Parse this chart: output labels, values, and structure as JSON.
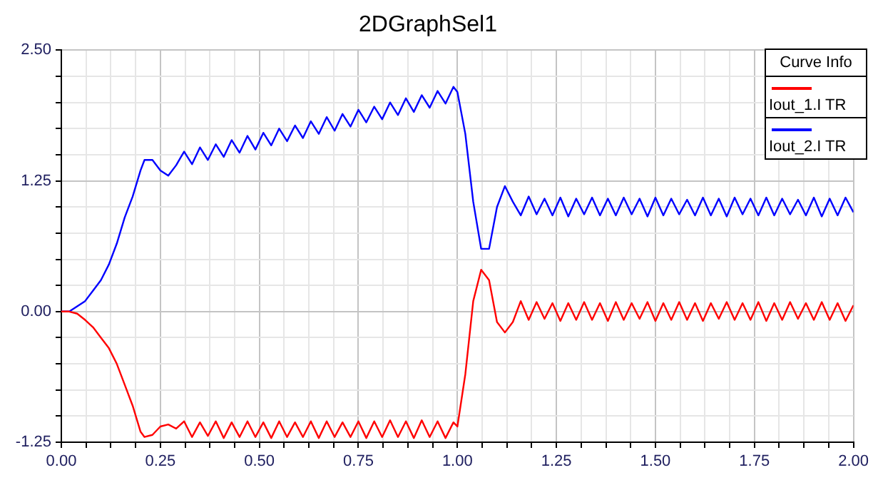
{
  "chart_data": {
    "type": "line",
    "title": "2DGraphSel1",
    "legend_title": "Curve Info",
    "legend": "top right",
    "grid": true,
    "marker": "none",
    "line_style": "solid",
    "xlim": [
      0,
      2
    ],
    "ylim": [
      -1.25,
      2.5
    ],
    "xticks": [
      {
        "value": 0,
        "label": "0.00"
      },
      {
        "value": 0.0625,
        "label": null
      },
      {
        "value": 0.125,
        "label": null
      },
      {
        "value": 0.1875,
        "label": null
      },
      {
        "value": 0.25,
        "label": "0.25"
      },
      {
        "value": 0.3125,
        "label": null
      },
      {
        "value": 0.375,
        "label": null
      },
      {
        "value": 0.4375,
        "label": null
      },
      {
        "value": 0.5,
        "label": "0.50"
      },
      {
        "value": 0.5625,
        "label": null
      },
      {
        "value": 0.625,
        "label": null
      },
      {
        "value": 0.6875,
        "label": null
      },
      {
        "value": 0.75,
        "label": "0.75"
      },
      {
        "value": 0.8125,
        "label": null
      },
      {
        "value": 0.875,
        "label": null
      },
      {
        "value": 0.9375,
        "label": null
      },
      {
        "value": 1,
        "label": "1.00"
      },
      {
        "value": 1.0625,
        "label": null
      },
      {
        "value": 1.125,
        "label": null
      },
      {
        "value": 1.1875,
        "label": null
      },
      {
        "value": 1.25,
        "label": "1.25"
      },
      {
        "value": 1.3125,
        "label": null
      },
      {
        "value": 1.375,
        "label": null
      },
      {
        "value": 1.4375,
        "label": null
      },
      {
        "value": 1.5,
        "label": "1.50"
      },
      {
        "value": 1.5625,
        "label": null
      },
      {
        "value": 1.625,
        "label": null
      },
      {
        "value": 1.6875,
        "label": null
      },
      {
        "value": 1.75,
        "label": "1.75"
      },
      {
        "value": 1.8125,
        "label": null
      },
      {
        "value": 1.875,
        "label": null
      },
      {
        "value": 1.9375,
        "label": null
      },
      {
        "value": 2,
        "label": "2.00"
      }
    ],
    "yticks": [
      {
        "value": -1.25,
        "label": "-1.25"
      },
      {
        "value": -1,
        "label": null
      },
      {
        "value": -0.75,
        "label": null
      },
      {
        "value": -0.5,
        "label": null
      },
      {
        "value": -0.25,
        "label": null
      },
      {
        "value": 0,
        "label": "0.00"
      },
      {
        "value": 0.25,
        "label": null
      },
      {
        "value": 0.5,
        "label": null
      },
      {
        "value": 0.75,
        "label": null
      },
      {
        "value": 1,
        "label": null
      },
      {
        "value": 1.25,
        "label": "1.25"
      },
      {
        "value": 1.5,
        "label": null
      },
      {
        "value": 1.75,
        "label": null
      },
      {
        "value": 2,
        "label": null
      },
      {
        "value": 2.25,
        "label": null
      },
      {
        "value": 2.5,
        "label": "2.50"
      }
    ],
    "x": [
      0,
      0.02,
      0.04,
      0.06,
      0.08,
      0.1,
      0.12,
      0.14,
      0.16,
      0.18,
      0.2,
      0.21,
      0.23,
      0.25,
      0.27,
      0.29,
      0.31,
      0.33,
      0.35,
      0.37,
      0.39,
      0.41,
      0.43,
      0.45,
      0.47,
      0.49,
      0.51,
      0.53,
      0.55,
      0.57,
      0.59,
      0.61,
      0.63,
      0.65,
      0.67,
      0.69,
      0.71,
      0.73,
      0.75,
      0.77,
      0.79,
      0.81,
      0.83,
      0.85,
      0.87,
      0.89,
      0.91,
      0.93,
      0.95,
      0.97,
      0.99,
      1.0,
      1.02,
      1.04,
      1.06,
      1.08,
      1.1,
      1.12,
      1.14,
      1.16,
      1.18,
      1.2,
      1.22,
      1.24,
      1.26,
      1.28,
      1.3,
      1.32,
      1.34,
      1.36,
      1.38,
      1.4,
      1.42,
      1.44,
      1.46,
      1.48,
      1.5,
      1.52,
      1.54,
      1.56,
      1.58,
      1.6,
      1.62,
      1.64,
      1.66,
      1.68,
      1.7,
      1.72,
      1.74,
      1.76,
      1.78,
      1.8,
      1.82,
      1.84,
      1.86,
      1.88,
      1.9,
      1.92,
      1.94,
      1.96,
      1.98,
      2.0
    ],
    "series": [
      {
        "name": "Iout_1.I TR",
        "color": "#ff0000",
        "values": [
          0,
          0,
          -0.02,
          -0.08,
          -0.15,
          -0.25,
          -0.35,
          -0.5,
          -0.7,
          -0.9,
          -1.15,
          -1.2,
          -1.18,
          -1.1,
          -1.08,
          -1.12,
          -1.05,
          -1.2,
          -1.06,
          -1.19,
          -1.05,
          -1.21,
          -1.06,
          -1.2,
          -1.05,
          -1.2,
          -1.06,
          -1.21,
          -1.05,
          -1.2,
          -1.06,
          -1.2,
          -1.05,
          -1.21,
          -1.05,
          -1.2,
          -1.06,
          -1.2,
          -1.05,
          -1.21,
          -1.05,
          -1.2,
          -1.04,
          -1.2,
          -1.05,
          -1.21,
          -1.04,
          -1.2,
          -1.05,
          -1.21,
          -1.06,
          -1.1,
          -0.6,
          0.1,
          0.4,
          0.3,
          -0.1,
          -0.2,
          -0.1,
          0.1,
          -0.08,
          0.09,
          -0.07,
          0.08,
          -0.09,
          0.08,
          -0.08,
          0.09,
          -0.08,
          0.08,
          -0.09,
          0.09,
          -0.08,
          0.08,
          -0.07,
          0.09,
          -0.09,
          0.08,
          -0.08,
          0.09,
          -0.08,
          0.08,
          -0.09,
          0.08,
          -0.07,
          0.09,
          -0.08,
          0.08,
          -0.08,
          0.09,
          -0.09,
          0.08,
          -0.08,
          0.09,
          -0.07,
          0.08,
          -0.08,
          0.09,
          -0.08,
          0.08,
          -0.09,
          0.06
        ]
      },
      {
        "name": "Iout_2.I TR",
        "color": "#0000ff",
        "values": [
          0,
          0,
          0.05,
          0.1,
          0.2,
          0.3,
          0.45,
          0.65,
          0.9,
          1.1,
          1.35,
          1.45,
          1.45,
          1.35,
          1.3,
          1.4,
          1.53,
          1.41,
          1.57,
          1.45,
          1.6,
          1.48,
          1.64,
          1.52,
          1.68,
          1.55,
          1.71,
          1.59,
          1.75,
          1.63,
          1.78,
          1.66,
          1.82,
          1.7,
          1.86,
          1.73,
          1.89,
          1.77,
          1.93,
          1.81,
          1.96,
          1.84,
          2.0,
          1.88,
          2.04,
          1.91,
          2.07,
          1.95,
          2.11,
          1.99,
          2.15,
          2.1,
          1.7,
          1.05,
          0.6,
          0.6,
          1.0,
          1.2,
          1.05,
          0.92,
          1.1,
          0.93,
          1.08,
          0.92,
          1.09,
          0.91,
          1.08,
          0.93,
          1.09,
          0.92,
          1.08,
          0.92,
          1.09,
          0.93,
          1.08,
          0.91,
          1.09,
          0.92,
          1.08,
          0.93,
          1.07,
          0.92,
          1.09,
          0.92,
          1.08,
          0.91,
          1.09,
          0.93,
          1.08,
          0.92,
          1.09,
          0.92,
          1.08,
          0.93,
          1.07,
          0.92,
          1.09,
          0.91,
          1.08,
          0.92,
          1.09,
          0.95
        ]
      }
    ]
  }
}
